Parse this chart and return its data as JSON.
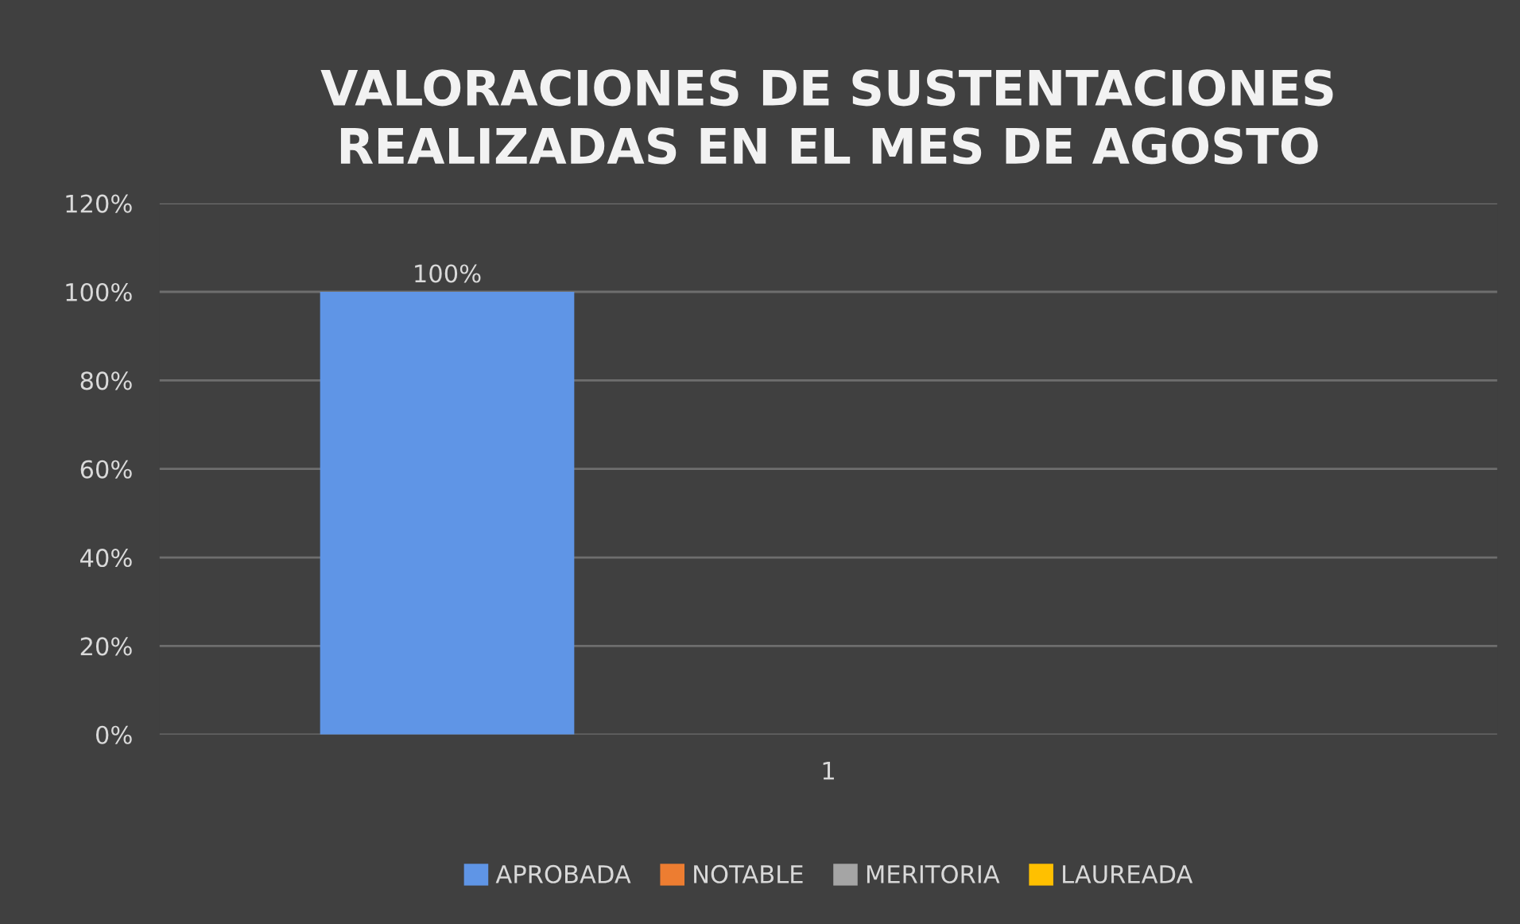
{
  "chart_data": {
    "type": "bar",
    "title": "VALORACIONES DE SUSTENTACIONES\nREALIZADAS EN EL MES DE AGOSTO",
    "categories": [
      "1"
    ],
    "series": [
      {
        "name": "APROBADA",
        "color": "#5f95e6",
        "values": [
          100
        ],
        "value_labels": [
          "100%"
        ]
      },
      {
        "name": "NOTABLE",
        "color": "#ed7d31",
        "values": [
          null
        ]
      },
      {
        "name": "MERITORIA",
        "color": "#a5a5a5",
        "values": [
          null
        ]
      },
      {
        "name": "LAUREADA",
        "color": "#ffc000",
        "values": [
          null
        ]
      }
    ],
    "ylim": [
      0,
      120
    ],
    "yticks": [
      {
        "value": 0,
        "label": "0%"
      },
      {
        "value": 20,
        "label": "20%"
      },
      {
        "value": 40,
        "label": "40%"
      },
      {
        "value": 60,
        "label": "60%"
      },
      {
        "value": 80,
        "label": "80%"
      },
      {
        "value": 100,
        "label": "100%"
      },
      {
        "value": 120,
        "label": "120%"
      }
    ],
    "grid": "y",
    "legend": "bottom"
  }
}
